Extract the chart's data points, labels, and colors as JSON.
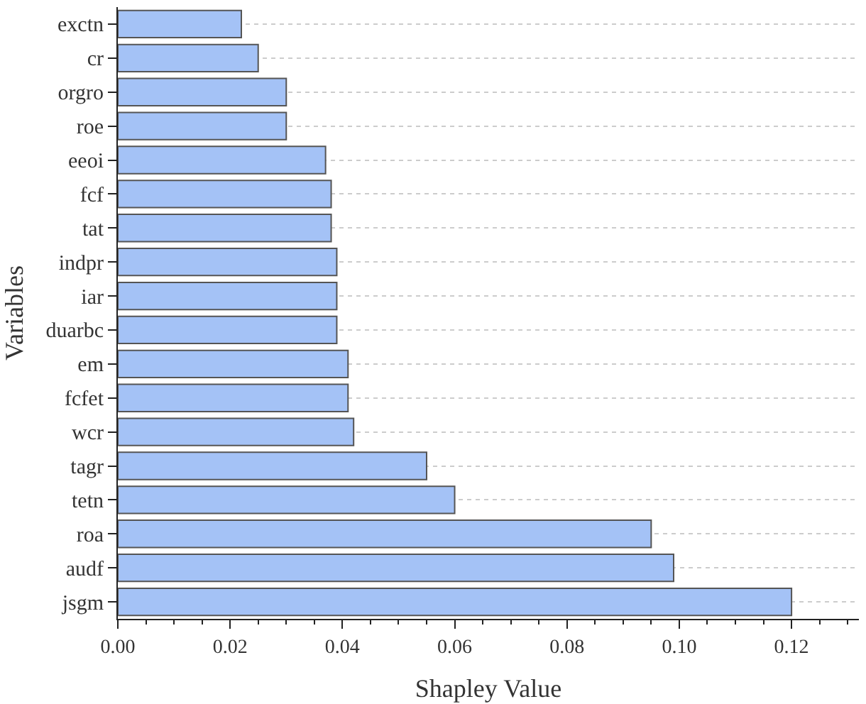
{
  "chart_data": {
    "type": "bar",
    "orientation": "horizontal",
    "xlabel": "Shapley Value",
    "ylabel": "Variables",
    "categories": [
      "exctn",
      "cr",
      "orgro",
      "roe",
      "eeoi",
      "fcf",
      "tat",
      "indpr",
      "iar",
      "duarbc",
      "em",
      "fcfet",
      "wcr",
      "tagr",
      "tetn",
      "roa",
      "audf",
      "jsgm"
    ],
    "values": [
      0.022,
      0.025,
      0.03,
      0.03,
      0.037,
      0.038,
      0.038,
      0.039,
      0.039,
      0.039,
      0.041,
      0.041,
      0.042,
      0.055,
      0.06,
      0.095,
      0.099,
      0.12
    ],
    "color": "#a4c2f6",
    "xlim": [
      0,
      0.132
    ],
    "xticks": [
      {
        "value": 0,
        "label": "0.00"
      },
      {
        "value": 0.02,
        "label": "0.02"
      },
      {
        "value": 0.04,
        "label": "0.04"
      },
      {
        "value": 0.06,
        "label": "0.06"
      },
      {
        "value": 0.08,
        "label": "0.08"
      },
      {
        "value": 0.1,
        "label": "0.10"
      },
      {
        "value": 0.12,
        "label": "0.12"
      }
    ],
    "grid": "y",
    "legend": false
  }
}
